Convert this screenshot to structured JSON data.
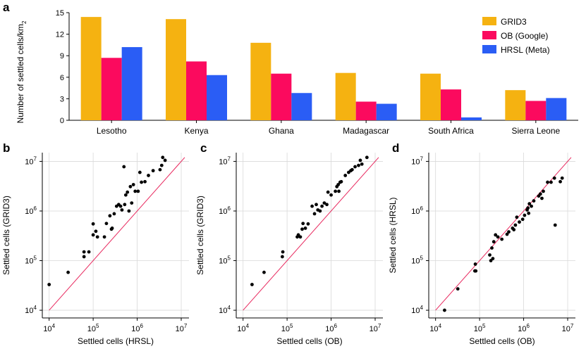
{
  "chart_data": [
    {
      "panel": "a",
      "type": "bar",
      "ylabel": "Number of settled cells/km",
      "ylabel_sub": "2",
      "ylim": [
        0,
        15
      ],
      "yticks": [
        0,
        3,
        6,
        9,
        12,
        15
      ],
      "categories": [
        "Lesotho",
        "Kenya",
        "Ghana",
        "Madagascar",
        "South Africa",
        "Sierra Leone"
      ],
      "legend_position": "top-right",
      "series": [
        {
          "name": "GRID3",
          "color": "#f5b211",
          "values": [
            14.4,
            14.1,
            10.8,
            6.6,
            6.5,
            4.2
          ]
        },
        {
          "name": "OB (Google)",
          "color": "#fb0a5e",
          "values": [
            8.7,
            8.2,
            6.5,
            2.6,
            4.3,
            2.7
          ]
        },
        {
          "name": "HRSL (Meta)",
          "color": "#2a5df5",
          "values": [
            10.2,
            6.3,
            3.8,
            2.3,
            0.4,
            3.1
          ]
        }
      ]
    },
    {
      "panel": "b",
      "type": "scatter",
      "xscale": "log",
      "yscale": "log",
      "xlabel": "Settled cells (HRSL)",
      "ylabel": "Settled cells (GRID3)",
      "xlim": [
        7000,
        15000000
      ],
      "ylim": [
        7000,
        15000000
      ],
      "ticks": [
        {
          "value": 10000,
          "base": "10",
          "exp": "4"
        },
        {
          "value": 100000,
          "base": "10",
          "exp": "5"
        },
        {
          "value": 1000000,
          "base": "10",
          "exp": "6"
        },
        {
          "value": 10000000,
          "base": "10",
          "exp": "7"
        }
      ],
      "identity_line": [
        10000,
        12000000
      ],
      "identity_color": "#e8285e",
      "points": [
        [
          10000,
          33000
        ],
        [
          27000,
          58000
        ],
        [
          62000,
          120000
        ],
        [
          62000,
          150000
        ],
        [
          80000,
          150000
        ],
        [
          100000,
          550000
        ],
        [
          100000,
          330000
        ],
        [
          115000,
          390000
        ],
        [
          125000,
          300000
        ],
        [
          180000,
          300000
        ],
        [
          200000,
          560000
        ],
        [
          240000,
          800000
        ],
        [
          260000,
          430000
        ],
        [
          270000,
          450000
        ],
        [
          300000,
          880000
        ],
        [
          340000,
          1250000
        ],
        [
          380000,
          1350000
        ],
        [
          420000,
          1250000
        ],
        [
          450000,
          1050000
        ],
        [
          500000,
          7800000
        ],
        [
          520000,
          1350000
        ],
        [
          550000,
          2100000
        ],
        [
          600000,
          2400000
        ],
        [
          650000,
          1000000
        ],
        [
          700000,
          3100000
        ],
        [
          750000,
          1450000
        ],
        [
          820000,
          3400000
        ],
        [
          900000,
          2500000
        ],
        [
          1050000,
          2500000
        ],
        [
          1150000,
          6000000
        ],
        [
          1250000,
          3800000
        ],
        [
          1500000,
          3900000
        ],
        [
          1800000,
          5200000
        ],
        [
          2300000,
          6500000
        ],
        [
          3300000,
          6800000
        ],
        [
          3600000,
          8300000
        ],
        [
          3800000,
          12000000
        ],
        [
          4300000,
          10500000
        ]
      ]
    },
    {
      "panel": "c",
      "type": "scatter",
      "xscale": "log",
      "yscale": "log",
      "xlabel": "Settled cells (OB)",
      "ylabel": "Settled cells (GRID3)",
      "xlim": [
        7000,
        15000000
      ],
      "ylim": [
        7000,
        15000000
      ],
      "ticks": [
        {
          "value": 10000,
          "base": "10",
          "exp": "4"
        },
        {
          "value": 100000,
          "base": "10",
          "exp": "5"
        },
        {
          "value": 1000000,
          "base": "10",
          "exp": "6"
        },
        {
          "value": 10000000,
          "base": "10",
          "exp": "7"
        }
      ],
      "identity_line": [
        10000,
        12000000
      ],
      "identity_color": "#e8285e",
      "points": [
        [
          16000,
          33000
        ],
        [
          30000,
          58000
        ],
        [
          78000,
          120000
        ],
        [
          80000,
          150000
        ],
        [
          170000,
          300000
        ],
        [
          180000,
          330000
        ],
        [
          200000,
          300000
        ],
        [
          220000,
          430000
        ],
        [
          230000,
          560000
        ],
        [
          260000,
          450000
        ],
        [
          300000,
          550000
        ],
        [
          370000,
          1250000
        ],
        [
          420000,
          880000
        ],
        [
          460000,
          1350000
        ],
        [
          500000,
          1050000
        ],
        [
          560000,
          1000000
        ],
        [
          620000,
          1250000
        ],
        [
          700000,
          1450000
        ],
        [
          800000,
          1350000
        ],
        [
          850000,
          2400000
        ],
        [
          1000000,
          2100000
        ],
        [
          1250000,
          2500000
        ],
        [
          1350000,
          3100000
        ],
        [
          1450000,
          3400000
        ],
        [
          1500000,
          2500000
        ],
        [
          1600000,
          3800000
        ],
        [
          1700000,
          3900000
        ],
        [
          2100000,
          5200000
        ],
        [
          2500000,
          6000000
        ],
        [
          2800000,
          6500000
        ],
        [
          3000000,
          6800000
        ],
        [
          3500000,
          7800000
        ],
        [
          4200000,
          8300000
        ],
        [
          4600000,
          10500000
        ],
        [
          5000000,
          8800000
        ],
        [
          6500000,
          12000000
        ]
      ]
    },
    {
      "panel": "d",
      "type": "scatter",
      "xscale": "log",
      "yscale": "log",
      "xlabel": "Settled cells (OB)",
      "ylabel": "Settled cells (HRSL)",
      "xlim": [
        7000,
        15000000
      ],
      "ylim": [
        7000,
        15000000
      ],
      "ticks": [
        {
          "value": 10000,
          "base": "10",
          "exp": "4"
        },
        {
          "value": 100000,
          "base": "10",
          "exp": "5"
        },
        {
          "value": 1000000,
          "base": "10",
          "exp": "6"
        },
        {
          "value": 10000000,
          "base": "10",
          "exp": "7"
        }
      ],
      "identity_line": [
        10000,
        12000000
      ],
      "identity_color": "#e8285e",
      "points": [
        [
          16000,
          10000
        ],
        [
          32000,
          27000
        ],
        [
          78000,
          62000
        ],
        [
          80000,
          85000
        ],
        [
          82000,
          62000
        ],
        [
          170000,
          130000
        ],
        [
          180000,
          100000
        ],
        [
          190000,
          180000
        ],
        [
          200000,
          110000
        ],
        [
          210000,
          240000
        ],
        [
          230000,
          330000
        ],
        [
          260000,
          300000
        ],
        [
          320000,
          270000
        ],
        [
          420000,
          340000
        ],
        [
          460000,
          380000
        ],
        [
          560000,
          450000
        ],
        [
          600000,
          420000
        ],
        [
          650000,
          520000
        ],
        [
          700000,
          750000
        ],
        [
          800000,
          600000
        ],
        [
          950000,
          680000
        ],
        [
          1050000,
          820000
        ],
        [
          1200000,
          1050000
        ],
        [
          1250000,
          1150000
        ],
        [
          1300000,
          900000
        ],
        [
          1350000,
          1400000
        ],
        [
          1500000,
          1250000
        ],
        [
          1700000,
          1600000
        ],
        [
          2200000,
          2000000
        ],
        [
          2400000,
          2200000
        ],
        [
          2600000,
          1800000
        ],
        [
          2800000,
          2500000
        ],
        [
          3500000,
          3800000
        ],
        [
          4200000,
          3800000
        ],
        [
          5000000,
          4600000
        ],
        [
          5200000,
          520000
        ],
        [
          6800000,
          3900000
        ],
        [
          7500000,
          4600000
        ]
      ]
    }
  ]
}
